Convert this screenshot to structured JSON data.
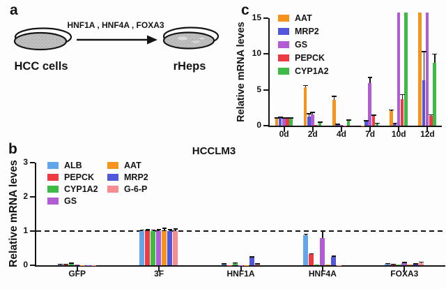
{
  "panel_a": {
    "label": "a",
    "arrow_text": "HNF1A , HNF4A , FOXA3",
    "left_dish_label": "HCC cells",
    "right_dish_label": "rHeps"
  },
  "panel_b_label": "b",
  "panel_c_label": "c",
  "colors": {
    "ALB": "#62A6E9",
    "PEPCK": "#EE3B41",
    "CYP1A2": "#3EBB47",
    "GS": "#B15CD4",
    "AAT": "#F6921E",
    "MRP2": "#5456D9",
    "G-6-P": "#F58C90",
    "axis": "#141414"
  },
  "chart_data": [
    {
      "id": "panel_c",
      "type": "bar",
      "title": "",
      "ylabel": "Relative mRNA leves",
      "xlabel": "",
      "ylim": [
        0,
        15
      ],
      "yticks": [
        0,
        5,
        10,
        15
      ],
      "categories": [
        "0d",
        "2d",
        "4d",
        "7d",
        "10d",
        "12d"
      ],
      "grid": false,
      "legend_position": "top-left inside, single column",
      "off_scale_note": "Bars drawn above the 15 axis maximum (GS and CYP1A2 at 10d; AAT and GS at 12d) are off-scale/clipped; encoded here as 15.8.",
      "series": [
        {
          "name": "AAT",
          "color": "#F6921E",
          "values": [
            1.0,
            5.4,
            3.6,
            0.05,
            2.1,
            15.8
          ],
          "errors": [
            0.07,
            0.2,
            0.5,
            0,
            0.08,
            0
          ]
        },
        {
          "name": "MRP2",
          "color": "#5456D9",
          "values": [
            1.1,
            1.3,
            0.15,
            0.6,
            0.3,
            6.3
          ],
          "errors": [
            0.07,
            0.35,
            0.03,
            0.07,
            0.04,
            4.0
          ]
        },
        {
          "name": "GS",
          "color": "#B15CD4",
          "values": [
            1.0,
            1.6,
            0.06,
            5.9,
            15.8,
            15.8
          ],
          "errors": [
            0.1,
            0.25,
            0,
            0.8,
            0,
            0
          ]
        },
        {
          "name": "PEPCK",
          "color": "#EE3B41",
          "values": [
            1.0,
            0.08,
            0.04,
            1.35,
            3.7,
            1.4
          ],
          "errors": [
            0.07,
            0,
            0,
            0.12,
            0.65,
            0.12
          ]
        },
        {
          "name": "CYP1A2",
          "color": "#3EBB47",
          "values": [
            1.0,
            0.45,
            0.7,
            0.3,
            15.8,
            8.8
          ],
          "errors": [
            0.07,
            0.05,
            0.07,
            0.04,
            0,
            1.2
          ]
        }
      ]
    },
    {
      "id": "panel_b",
      "type": "bar",
      "title": "HCCLM3",
      "ylabel": "Relative mRNA leves",
      "xlabel": "",
      "ylim": [
        0,
        3
      ],
      "yticks": [
        0,
        1,
        2,
        3
      ],
      "categories": [
        "GFP",
        "3F",
        "HNF1A",
        "HNF4A",
        "FOXA3"
      ],
      "grid": false,
      "reference_line_y": 1,
      "legend_position": "top-left inside, two columns",
      "series": [
        {
          "name": "ALB",
          "color": "#62A6E9",
          "values": [
            0.02,
            1.0,
            0.03,
            0.87,
            0.04
          ],
          "errors": [
            0.01,
            0.03,
            0.01,
            0.04,
            0.01
          ]
        },
        {
          "name": "PEPCK",
          "color": "#EE3B41",
          "values": [
            0.02,
            1.0,
            0.01,
            0.32,
            0.02
          ],
          "errors": [
            0.01,
            0.04,
            0,
            0.02,
            0.01
          ]
        },
        {
          "name": "CYP1A2",
          "color": "#3EBB47",
          "values": [
            0.05,
            1.0,
            0.06,
            0.02,
            0.02
          ],
          "errors": [
            0.01,
            0.03,
            0.01,
            0,
            0
          ]
        },
        {
          "name": "GS",
          "color": "#B15CD4",
          "values": [
            0.02,
            1.0,
            0.01,
            0.8,
            0.06
          ],
          "errors": [
            0,
            0.04,
            0,
            0.2,
            0.02
          ]
        },
        {
          "name": "AAT",
          "color": "#F6921E",
          "values": [
            0.01,
            1.0,
            0.01,
            0.02,
            0.02
          ],
          "errors": [
            0,
            0.08,
            0,
            0,
            0
          ]
        },
        {
          "name": "MRP2",
          "color": "#5456D9",
          "values": [
            0.01,
            1.0,
            0.22,
            0.24,
            0.03
          ],
          "errors": [
            0,
            0.04,
            0.02,
            0.02,
            0.01
          ]
        },
        {
          "name": "G-6-P",
          "color": "#F58C90",
          "values": [
            0.01,
            1.0,
            0.03,
            0.01,
            0.07
          ],
          "errors": [
            0,
            0.06,
            0.01,
            0,
            0.02
          ]
        }
      ]
    }
  ]
}
